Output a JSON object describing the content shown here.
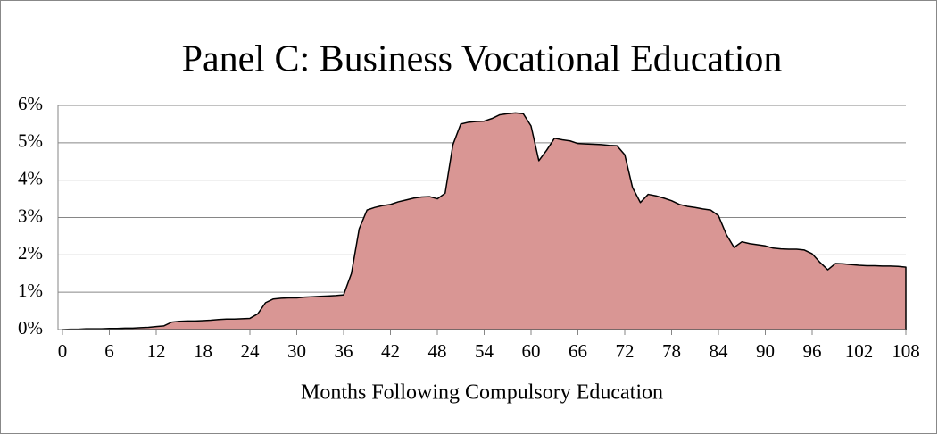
{
  "chart_data": {
    "type": "area",
    "title": "Panel C:  Business Vocational Education",
    "xlabel": "Months Following Compulsory Education",
    "x": [
      0,
      1,
      2,
      3,
      4,
      5,
      6,
      7,
      8,
      9,
      10,
      11,
      12,
      13,
      14,
      15,
      16,
      17,
      18,
      19,
      20,
      21,
      22,
      23,
      24,
      25,
      26,
      27,
      28,
      29,
      30,
      31,
      32,
      33,
      34,
      35,
      36,
      37,
      38,
      39,
      40,
      41,
      42,
      43,
      44,
      45,
      46,
      47,
      48,
      49,
      50,
      51,
      52,
      53,
      54,
      55,
      56,
      57,
      58,
      59,
      60,
      61,
      62,
      63,
      64,
      65,
      66,
      67,
      68,
      69,
      70,
      71,
      72,
      73,
      74,
      75,
      76,
      77,
      78,
      79,
      80,
      81,
      82,
      83,
      84,
      85,
      86,
      87,
      88,
      89,
      90,
      91,
      92,
      93,
      94,
      95,
      96,
      97,
      98,
      99,
      100,
      101,
      102,
      103,
      104,
      105,
      106,
      107,
      108
    ],
    "values": [
      0,
      0.01,
      0.01,
      0.02,
      0.02,
      0.02,
      0.03,
      0.03,
      0.04,
      0.04,
      0.05,
      0.06,
      0.08,
      0.1,
      0.2,
      0.22,
      0.23,
      0.23,
      0.24,
      0.25,
      0.27,
      0.28,
      0.28,
      0.29,
      0.3,
      0.42,
      0.72,
      0.82,
      0.84,
      0.85,
      0.85,
      0.87,
      0.88,
      0.89,
      0.9,
      0.91,
      0.93,
      1.5,
      2.7,
      3.2,
      3.27,
      3.32,
      3.35,
      3.42,
      3.47,
      3.52,
      3.55,
      3.56,
      3.5,
      3.65,
      4.95,
      5.5,
      5.55,
      5.57,
      5.58,
      5.65,
      5.75,
      5.78,
      5.8,
      5.78,
      5.45,
      4.52,
      4.8,
      5.12,
      5.08,
      5.05,
      4.98,
      4.97,
      4.96,
      4.95,
      4.93,
      4.92,
      4.68,
      3.8,
      3.4,
      3.62,
      3.58,
      3.52,
      3.45,
      3.35,
      3.3,
      3.27,
      3.23,
      3.2,
      3.05,
      2.55,
      2.2,
      2.35,
      2.3,
      2.27,
      2.24,
      2.18,
      2.16,
      2.15,
      2.15,
      2.13,
      2.03,
      1.8,
      1.6,
      1.77,
      1.76,
      1.74,
      1.72,
      1.71,
      1.71,
      1.7,
      1.7,
      1.69,
      1.67
    ],
    "color": "#d99694",
    "xlim": [
      0,
      108
    ],
    "xticks": [
      0,
      6,
      12,
      18,
      24,
      30,
      36,
      42,
      48,
      54,
      60,
      66,
      72,
      78,
      84,
      90,
      96,
      102,
      108
    ],
    "ylim": [
      0,
      6
    ],
    "yticks": [
      {
        "value": 0,
        "label": "0%"
      },
      {
        "value": 1,
        "label": "1%"
      },
      {
        "value": 2,
        "label": "2%"
      },
      {
        "value": 3,
        "label": "3%"
      },
      {
        "value": 4,
        "label": "4%"
      },
      {
        "value": 5,
        "label": "5%"
      },
      {
        "value": 6,
        "label": "6%"
      }
    ],
    "grid": true
  }
}
